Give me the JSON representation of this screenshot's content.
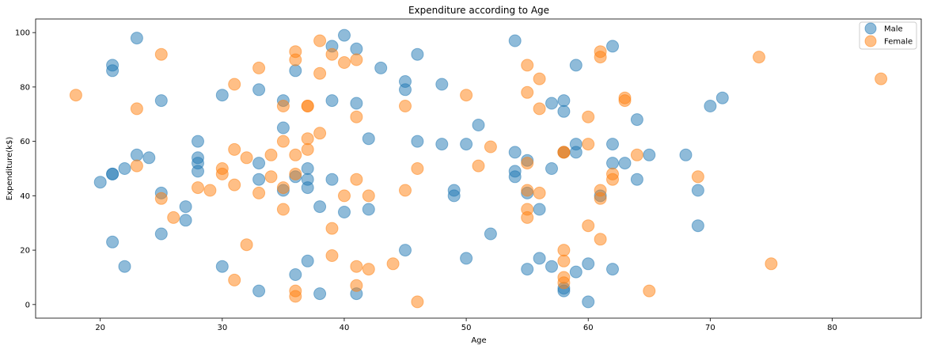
{
  "chart_data": {
    "type": "scatter",
    "title": "Expenditure according to Age",
    "xlabel": "Age",
    "ylabel": "Expenditure(k$)",
    "xlim": [
      14.7,
      87.3
    ],
    "ylim": [
      -5,
      105
    ],
    "xticks": [
      20,
      30,
      40,
      50,
      60,
      70,
      80
    ],
    "yticks": [
      0,
      20,
      40,
      60,
      80,
      100
    ],
    "grid": false,
    "legend_position": "top-right",
    "series": [
      {
        "name": "Male",
        "color": "#1f77b4",
        "points": [
          [
            21,
            88
          ],
          [
            21,
            86
          ],
          [
            23,
            98
          ],
          [
            24,
            54
          ],
          [
            20,
            45
          ],
          [
            21,
            48
          ],
          [
            21,
            48
          ],
          [
            22,
            50
          ],
          [
            23,
            55
          ],
          [
            21,
            23
          ],
          [
            22,
            14
          ],
          [
            25,
            75
          ],
          [
            25,
            41
          ],
          [
            25,
            26
          ],
          [
            27,
            36
          ],
          [
            27,
            31
          ],
          [
            28,
            60
          ],
          [
            28,
            54
          ],
          [
            28,
            52
          ],
          [
            28,
            49
          ],
          [
            30,
            77
          ],
          [
            30,
            14
          ],
          [
            33,
            79
          ],
          [
            33,
            52
          ],
          [
            33,
            46
          ],
          [
            33,
            5
          ],
          [
            35,
            75
          ],
          [
            35,
            65
          ],
          [
            35,
            42
          ],
          [
            36,
            86
          ],
          [
            36,
            47
          ],
          [
            36,
            11
          ],
          [
            37,
            50
          ],
          [
            37,
            46
          ],
          [
            37,
            43
          ],
          [
            37,
            16
          ],
          [
            38,
            36
          ],
          [
            38,
            4
          ],
          [
            39,
            95
          ],
          [
            39,
            75
          ],
          [
            39,
            46
          ],
          [
            40,
            99
          ],
          [
            40,
            34
          ],
          [
            41,
            94
          ],
          [
            41,
            74
          ],
          [
            41,
            4
          ],
          [
            42,
            61
          ],
          [
            42,
            35
          ],
          [
            43,
            87
          ],
          [
            45,
            82
          ],
          [
            45,
            79
          ],
          [
            45,
            20
          ],
          [
            46,
            92
          ],
          [
            46,
            60
          ],
          [
            48,
            81
          ],
          [
            48,
            59
          ],
          [
            49,
            42
          ],
          [
            49,
            40
          ],
          [
            50,
            59
          ],
          [
            50,
            17
          ],
          [
            51,
            66
          ],
          [
            52,
            26
          ],
          [
            54,
            97
          ],
          [
            54,
            56
          ],
          [
            54,
            49
          ],
          [
            54,
            47
          ],
          [
            55,
            53
          ],
          [
            55,
            41
          ],
          [
            55,
            13
          ],
          [
            56,
            35
          ],
          [
            56,
            17
          ],
          [
            57,
            74
          ],
          [
            57,
            50
          ],
          [
            57,
            14
          ],
          [
            58,
            75
          ],
          [
            58,
            71
          ],
          [
            58,
            56
          ],
          [
            58,
            6
          ],
          [
            58,
            5
          ],
          [
            59,
            88
          ],
          [
            59,
            59
          ],
          [
            59,
            56
          ],
          [
            59,
            12
          ],
          [
            60,
            15
          ],
          [
            60,
            1
          ],
          [
            61,
            40
          ],
          [
            62,
            95
          ],
          [
            62,
            59
          ],
          [
            62,
            52
          ],
          [
            62,
            13
          ],
          [
            63,
            52
          ],
          [
            64,
            68
          ],
          [
            64,
            46
          ],
          [
            65,
            55
          ],
          [
            68,
            55
          ],
          [
            69,
            42
          ],
          [
            69,
            29
          ],
          [
            70,
            73
          ],
          [
            71,
            76
          ]
        ]
      },
      {
        "name": "Female",
        "color": "#ff7f0e",
        "points": [
          [
            18,
            77
          ],
          [
            23,
            72
          ],
          [
            23,
            51
          ],
          [
            25,
            92
          ],
          [
            25,
            39
          ],
          [
            26,
            32
          ],
          [
            28,
            43
          ],
          [
            29,
            42
          ],
          [
            30,
            50
          ],
          [
            30,
            48
          ],
          [
            31,
            81
          ],
          [
            31,
            57
          ],
          [
            31,
            44
          ],
          [
            31,
            9
          ],
          [
            32,
            54
          ],
          [
            32,
            22
          ],
          [
            33,
            87
          ],
          [
            33,
            41
          ],
          [
            34,
            55
          ],
          [
            34,
            47
          ],
          [
            35,
            73
          ],
          [
            35,
            60
          ],
          [
            35,
            43
          ],
          [
            35,
            35
          ],
          [
            36,
            93
          ],
          [
            36,
            90
          ],
          [
            36,
            55
          ],
          [
            36,
            48
          ],
          [
            36,
            5
          ],
          [
            36,
            3
          ],
          [
            37,
            73
          ],
          [
            37,
            73
          ],
          [
            37,
            61
          ],
          [
            37,
            57
          ],
          [
            38,
            97
          ],
          [
            38,
            85
          ],
          [
            38,
            63
          ],
          [
            39,
            92
          ],
          [
            39,
            28
          ],
          [
            39,
            18
          ],
          [
            40,
            89
          ],
          [
            40,
            40
          ],
          [
            41,
            90
          ],
          [
            41,
            69
          ],
          [
            41,
            46
          ],
          [
            41,
            14
          ],
          [
            41,
            7
          ],
          [
            42,
            40
          ],
          [
            42,
            13
          ],
          [
            44,
            15
          ],
          [
            45,
            73
          ],
          [
            45,
            42
          ],
          [
            46,
            50
          ],
          [
            46,
            1
          ],
          [
            50,
            77
          ],
          [
            51,
            51
          ],
          [
            52,
            58
          ],
          [
            55,
            88
          ],
          [
            55,
            78
          ],
          [
            55,
            52
          ],
          [
            55,
            42
          ],
          [
            55,
            35
          ],
          [
            55,
            32
          ],
          [
            56,
            83
          ],
          [
            56,
            72
          ],
          [
            56,
            41
          ],
          [
            58,
            56
          ],
          [
            58,
            56
          ],
          [
            58,
            20
          ],
          [
            58,
            16
          ],
          [
            58,
            10
          ],
          [
            58,
            8
          ],
          [
            60,
            69
          ],
          [
            60,
            59
          ],
          [
            60,
            29
          ],
          [
            61,
            93
          ],
          [
            61,
            91
          ],
          [
            61,
            42
          ],
          [
            61,
            39
          ],
          [
            61,
            24
          ],
          [
            62,
            48
          ],
          [
            62,
            46
          ],
          [
            63,
            76
          ],
          [
            63,
            75
          ],
          [
            64,
            55
          ],
          [
            65,
            5
          ],
          [
            69,
            47
          ],
          [
            74,
            91
          ],
          [
            75,
            15
          ],
          [
            84,
            83
          ]
        ]
      }
    ]
  }
}
